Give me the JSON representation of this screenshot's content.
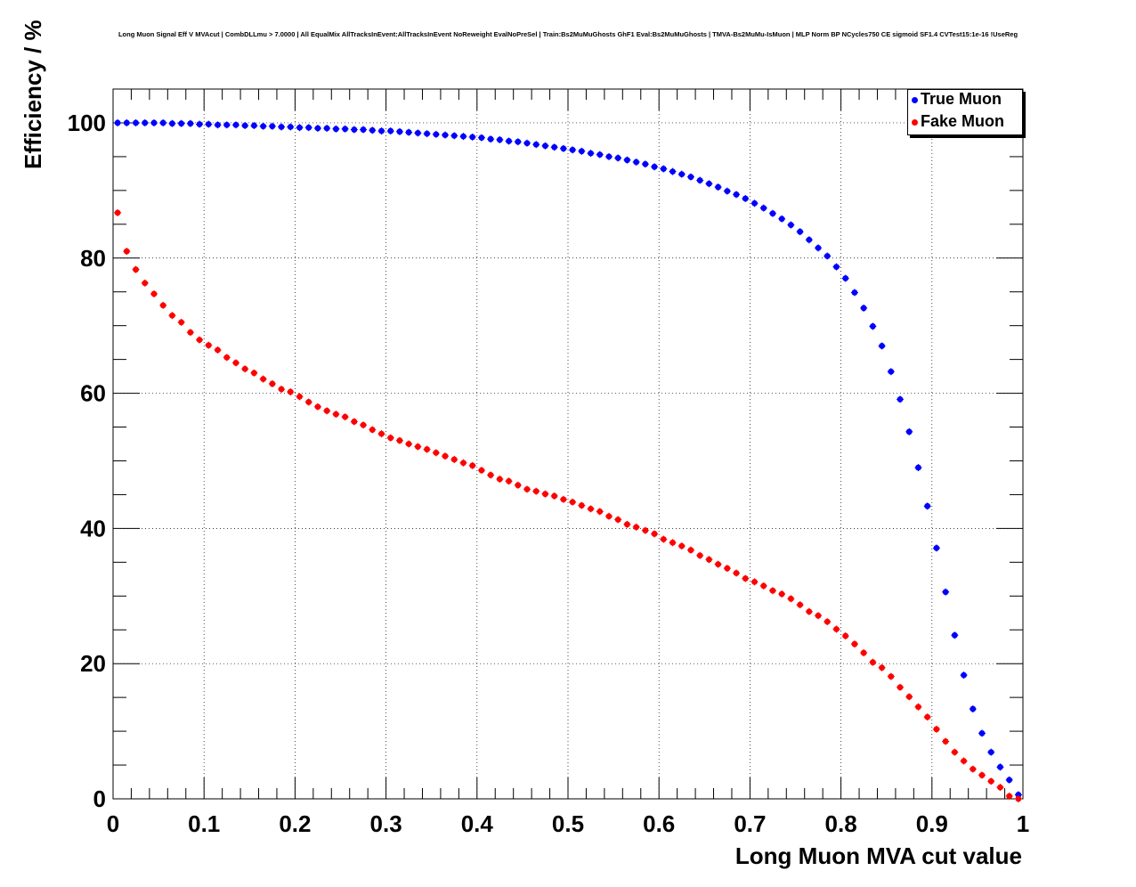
{
  "chart_data": {
    "type": "scatter",
    "title": "Long Muon Signal Eff V MVAcut | CombDLLmu > 7.0000 | All EqualMix AllTracksInEvent:AllTracksInEvent NoReweight EvalNoPreSel | Train:Bs2MuMuGhosts GhF1 Eval:Bs2MuMuGhosts | TMVA-Bs2MuMu-IsMuon | MLP Norm BP NCycles750 CE sigmoid SF1.4 CVTest15:1e-16 !UseReg",
    "xlabel": "Long Muon MVA cut value",
    "ylabel": "Efficiency / %",
    "xlim": [
      0,
      1
    ],
    "ylim": [
      0,
      105
    ],
    "xticks": [
      "0",
      "0.1",
      "0.2",
      "0.3",
      "0.4",
      "0.5",
      "0.6",
      "0.7",
      "0.8",
      "0.9",
      "1"
    ],
    "yticks": [
      "0",
      "20",
      "40",
      "60",
      "80",
      "100"
    ],
    "grid": true,
    "legend_position": "top-right",
    "series": [
      {
        "name": "True Muon",
        "color": "#0000ff",
        "marker": "circle",
        "x": [
          0.005,
          0.015,
          0.025,
          0.035,
          0.045,
          0.055,
          0.065,
          0.075,
          0.085,
          0.095,
          0.105,
          0.115,
          0.125,
          0.135,
          0.145,
          0.155,
          0.165,
          0.175,
          0.185,
          0.195,
          0.205,
          0.215,
          0.225,
          0.235,
          0.245,
          0.255,
          0.265,
          0.275,
          0.285,
          0.295,
          0.305,
          0.315,
          0.325,
          0.335,
          0.345,
          0.355,
          0.365,
          0.375,
          0.385,
          0.395,
          0.405,
          0.415,
          0.425,
          0.435,
          0.445,
          0.455,
          0.465,
          0.475,
          0.485,
          0.495,
          0.505,
          0.515,
          0.525,
          0.535,
          0.545,
          0.555,
          0.565,
          0.575,
          0.585,
          0.595,
          0.605,
          0.615,
          0.625,
          0.635,
          0.645,
          0.655,
          0.665,
          0.675,
          0.685,
          0.695,
          0.705,
          0.715,
          0.725,
          0.735,
          0.745,
          0.755,
          0.765,
          0.775,
          0.785,
          0.795,
          0.805,
          0.815,
          0.825,
          0.835,
          0.845,
          0.855,
          0.865,
          0.875,
          0.885,
          0.895,
          0.905,
          0.915,
          0.925,
          0.935,
          0.945,
          0.955,
          0.965,
          0.975,
          0.985,
          0.995
        ],
        "y": [
          100,
          100,
          100,
          100,
          100,
          100,
          99.9,
          99.9,
          99.9,
          99.8,
          99.8,
          99.7,
          99.7,
          99.7,
          99.6,
          99.6,
          99.5,
          99.5,
          99.4,
          99.4,
          99.3,
          99.3,
          99.2,
          99.2,
          99.1,
          99.1,
          99,
          99,
          98.9,
          98.8,
          98.8,
          98.7,
          98.6,
          98.5,
          98.4,
          98.3,
          98.2,
          98.1,
          98,
          97.9,
          97.8,
          97.6,
          97.5,
          97.3,
          97.2,
          97,
          96.8,
          96.6,
          96.4,
          96.2,
          96,
          95.8,
          95.5,
          95.3,
          95,
          94.8,
          94.5,
          94.2,
          93.9,
          93.5,
          93.2,
          92.8,
          92.4,
          92,
          91.5,
          91,
          90.5,
          89.9,
          89.4,
          88.8,
          88.1,
          87.4,
          86.6,
          85.8,
          84.9,
          83.9,
          82.7,
          81.5,
          80.3,
          78.7,
          77,
          74.9,
          72.6,
          69.9,
          67,
          63.2,
          59.1,
          54.3,
          49,
          43.3,
          37.1,
          30.6,
          24.2,
          18.3,
          13.3,
          9.7,
          6.9,
          4.7,
          2.8,
          0.6
        ]
      },
      {
        "name": "Fake Muon",
        "color": "#ff0000",
        "marker": "circle",
        "x": [
          0.005,
          0.015,
          0.025,
          0.035,
          0.045,
          0.055,
          0.065,
          0.075,
          0.085,
          0.095,
          0.105,
          0.115,
          0.125,
          0.135,
          0.145,
          0.155,
          0.165,
          0.175,
          0.185,
          0.195,
          0.205,
          0.215,
          0.225,
          0.235,
          0.245,
          0.255,
          0.265,
          0.275,
          0.285,
          0.295,
          0.305,
          0.315,
          0.325,
          0.335,
          0.345,
          0.355,
          0.365,
          0.375,
          0.385,
          0.395,
          0.405,
          0.415,
          0.425,
          0.435,
          0.445,
          0.455,
          0.465,
          0.475,
          0.485,
          0.495,
          0.505,
          0.515,
          0.525,
          0.535,
          0.545,
          0.555,
          0.565,
          0.575,
          0.585,
          0.595,
          0.605,
          0.615,
          0.625,
          0.635,
          0.645,
          0.655,
          0.665,
          0.675,
          0.685,
          0.695,
          0.705,
          0.715,
          0.725,
          0.735,
          0.745,
          0.755,
          0.765,
          0.775,
          0.785,
          0.795,
          0.805,
          0.815,
          0.825,
          0.835,
          0.845,
          0.855,
          0.865,
          0.875,
          0.885,
          0.895,
          0.905,
          0.915,
          0.925,
          0.935,
          0.945,
          0.955,
          0.965,
          0.975,
          0.985,
          0.995
        ],
        "y": [
          86.7,
          81,
          78.3,
          76.3,
          74.7,
          73,
          71.5,
          70.5,
          69,
          67.9,
          67.1,
          66.4,
          65.3,
          64.5,
          63.6,
          63,
          62.1,
          61.4,
          60.6,
          60.2,
          59.5,
          58.7,
          58,
          57.4,
          56.9,
          56.5,
          55.8,
          55.3,
          54.6,
          54,
          53.4,
          53,
          52.5,
          52.1,
          51.7,
          51.2,
          50.7,
          50.2,
          49.7,
          49.3,
          48.6,
          47.9,
          47.3,
          47,
          46.4,
          45.8,
          45.5,
          45.1,
          44.8,
          44.3,
          43.9,
          43.4,
          42.9,
          42.5,
          41.8,
          41.3,
          40.6,
          40.2,
          39.7,
          39.2,
          38.4,
          37.9,
          37.4,
          36.8,
          36,
          35.4,
          34.7,
          34.1,
          33.4,
          32.6,
          32.1,
          31.5,
          30.8,
          30.3,
          29.6,
          28.7,
          27.7,
          27.1,
          26.2,
          25.1,
          24.1,
          22.9,
          21.6,
          20.2,
          19.4,
          18.1,
          16.5,
          15.1,
          13.6,
          12.1,
          10.3,
          8.5,
          6.9,
          5.6,
          4.4,
          3.5,
          2.6,
          1.7,
          0.4,
          0
        ]
      }
    ]
  }
}
